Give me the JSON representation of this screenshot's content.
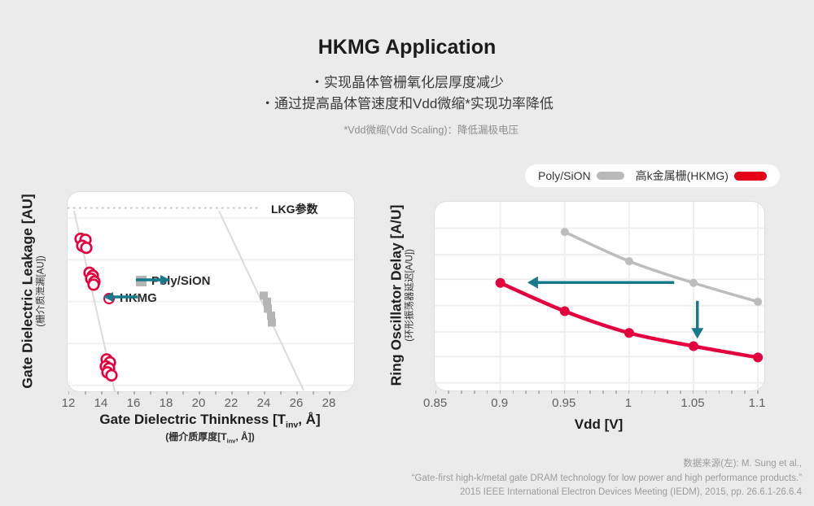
{
  "slide": {
    "title": "HKMG Application",
    "bullets": [
      "・实现晶体管栅氧化层厚度减少",
      "・通过提高晶体管速度和Vdd微缩*实现功率降低"
    ],
    "footnote": "*Vdd微缩(Vdd Scaling)：降低漏极电压",
    "source_lines": [
      "数据来源(左): M. Sung et al.,",
      "“Gate-first high-k/metal gate DRAM technology for low power and high performance products.”",
      "2015 IEEE International Electron Devices Meeting (IEDM), 2015, pp. 26.6.1-26.6.4"
    ]
  },
  "top_legend": {
    "items": [
      {
        "label": "Poly/SiON",
        "color": "#b9b9b9"
      },
      {
        "label": "高k金属栅(HKMG)",
        "color": "#e60018"
      }
    ]
  },
  "colors": {
    "background": "#ebebeb",
    "accent_red": "#e4003c",
    "accent_teal": "#16798c",
    "series_gray": "#bcbcbc",
    "marker_gray": "#b5b5b5"
  },
  "chart_data": [
    {
      "id": "gate-leakage",
      "type": "scatter",
      "ylabel": "Gate Dielectric Leakage [AU]",
      "ylabel_cn": "(栅介质泄漏[AU])",
      "xlabel_parts": {
        "pre": "Gate Dielectric Thinkness [T",
        "sub": "inv",
        "post": ", Å]"
      },
      "xlabel_cn_parts": {
        "pre": "(栅介质厚度[T",
        "sub": "inv",
        "post": ", Å])"
      },
      "xlim": [
        11.9,
        29.5
      ],
      "ylim": [
        0,
        10
      ],
      "x_tick_values": [
        12,
        14,
        16,
        18,
        20,
        22,
        24,
        26,
        28
      ],
      "x_tick_labels": [
        "12",
        "14",
        "16",
        "18",
        "20",
        "22",
        "24",
        "26",
        "28"
      ],
      "x_minor": [
        12,
        28,
        1
      ],
      "grid_y_values": [
        8.7,
        6.6,
        4.5,
        2.4,
        0.3
      ],
      "grid_color": "#f0f0f0",
      "trend_color": "#dadada",
      "trend_lines": [
        {
          "x1": 12.3,
          "y1": 9.05,
          "x2": 14.8,
          "y2": 0.0
        },
        {
          "x1": 21.2,
          "y1": 9.05,
          "x2": 26.4,
          "y2": 0.05
        }
      ],
      "threshold_line": {
        "label": "LKG参数",
        "y": 9.2,
        "x_start": 11.9,
        "x_end": 23.8,
        "color": "#c6c6c6"
      },
      "series": [
        {
          "name": "Poly/SiON",
          "marker": "square",
          "color": "#b5b5b5",
          "points": [
            [
              23.95,
              4.8
            ],
            [
              24.15,
              4.5
            ],
            [
              24.2,
              4.15
            ],
            [
              24.4,
              3.8
            ],
            [
              24.45,
              3.45
            ]
          ]
        },
        {
          "name": "HKMG",
          "marker": "circle",
          "color": "#e4003c",
          "points": [
            [
              12.7,
              7.65
            ],
            [
              13.0,
              7.6
            ],
            [
              12.8,
              7.3
            ],
            [
              13.05,
              7.2
            ],
            [
              13.25,
              5.95
            ],
            [
              13.45,
              5.8
            ],
            [
              13.35,
              5.65
            ],
            [
              13.55,
              5.5
            ],
            [
              13.5,
              5.35
            ],
            [
              14.3,
              1.6
            ],
            [
              14.5,
              1.45
            ],
            [
              14.25,
              1.25
            ],
            [
              14.45,
              1.15
            ],
            [
              14.35,
              0.95
            ],
            [
              14.6,
              0.8
            ]
          ]
        }
      ],
      "legend": [
        {
          "label": "Poly/SiON",
          "marker": "square",
          "arrow": "right"
        },
        {
          "label": "HKMG",
          "marker": "circle",
          "arrow": "left"
        }
      ]
    },
    {
      "id": "ring-oscillator-delay",
      "type": "line",
      "xlabel": "Vdd [V]",
      "ylabel": "Ring Oscillator Delay [A/U]",
      "ylabel_cn": "(环形振荡器延迟[A/U])",
      "xlim": [
        0.849,
        1.105
      ],
      "ylim": [
        0,
        10
      ],
      "x_tick_values": [
        0.85,
        0.9,
        0.95,
        1,
        1.05,
        1.1
      ],
      "x_tick_labels": [
        "0.85",
        "0.9",
        "0.95",
        "1",
        "1.05",
        "1.1"
      ],
      "x_minor": [
        0.85,
        1.1,
        0.01
      ],
      "grid_y_values": [
        8.6,
        7.2,
        5.9,
        4.5,
        3.1,
        1.8,
        0.4
      ],
      "grid_x_values": [
        0.9,
        0.95,
        1.0,
        1.05,
        1.1
      ],
      "grid_color": "#efefef",
      "series": [
        {
          "name": "Poly/SiON",
          "color": "#bcbcbc",
          "line_width": 3.5,
          "marker_r": 5,
          "x": [
            0.95,
            1.0,
            1.05,
            1.1
          ],
          "y": [
            8.4,
            6.85,
            5.7,
            4.7
          ]
        },
        {
          "name": "高k金属栅(HKMG)",
          "color": "#e4003c",
          "line_width": 4.5,
          "marker_r": 6,
          "x": [
            0.9,
            0.95,
            1.0,
            1.05,
            1.1
          ],
          "y": [
            5.7,
            4.2,
            3.05,
            2.35,
            1.75
          ]
        }
      ],
      "arrows": [
        {
          "type": "horizontal-left",
          "y": 5.72,
          "x_from": 1.035,
          "x_to": 0.921,
          "color": "#16798c"
        },
        {
          "type": "vertical-down",
          "x": 1.053,
          "y_from": 4.75,
          "y_to": 2.75,
          "color": "#16798c"
        }
      ]
    }
  ]
}
